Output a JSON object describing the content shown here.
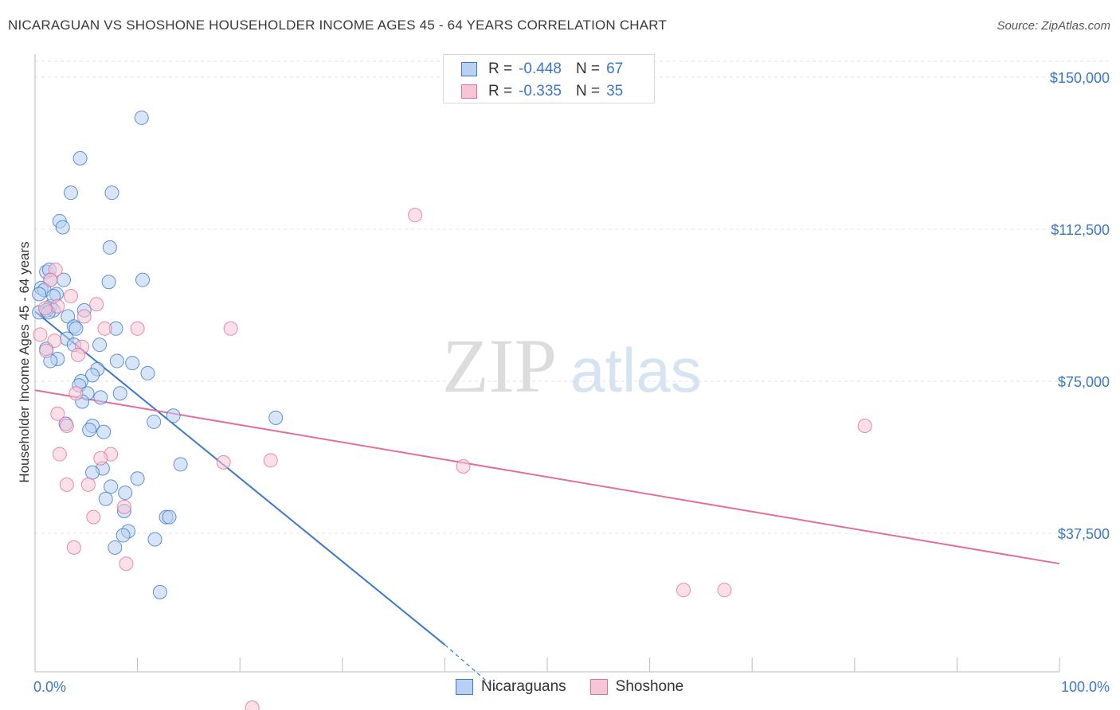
{
  "title": "NICARAGUAN VS SHOSHONE HOUSEHOLDER INCOME AGES 45 - 64 YEARS CORRELATION CHART",
  "source": "Source: ZipAtlas.com",
  "watermark": {
    "zip": "ZIP",
    "atlas": "atlas"
  },
  "colors": {
    "blue": "#3b78c9",
    "blue_fill": "#b8d0f2",
    "pink": "#e07097",
    "pink_fill": "#f7c6d6"
  },
  "legend": {
    "rows": [
      {
        "r_label": "R =",
        "r_value": "-0.448",
        "n_label": "N =",
        "n_value": "67"
      },
      {
        "r_label": "R =",
        "r_value": "-0.335",
        "n_label": "N =",
        "n_value": "35"
      }
    ]
  },
  "bottom_legend": [
    "Nicaraguans",
    "Shoshone"
  ],
  "chart_data": {
    "type": "scatter",
    "title": "NICARAGUAN VS SHOSHONE HOUSEHOLDER INCOME AGES 45 - 64 YEARS CORRELATION CHART",
    "xlabel": "",
    "ylabel": "Householder Income Ages 45 - 64 years",
    "xlim": [
      0,
      100
    ],
    "ylim": [
      0,
      155000
    ],
    "x_tick_labels": [
      "0.0%",
      "100.0%"
    ],
    "y_ticks": [
      37500,
      75000,
      112500,
      150000
    ],
    "y_tick_labels": [
      "$37,500",
      "$75,000",
      "$112,500",
      "$150,000"
    ],
    "series": [
      {
        "name": "Nicaraguans",
        "points": [
          [
            10.4,
            140000
          ],
          [
            4.4,
            130000
          ],
          [
            3.5,
            121500
          ],
          [
            7.5,
            121500
          ],
          [
            2.4,
            114500
          ],
          [
            2.7,
            113000
          ],
          [
            7.3,
            108000
          ],
          [
            1.1,
            102000
          ],
          [
            1.4,
            102500
          ],
          [
            1.5,
            100000
          ],
          [
            7.2,
            99500
          ],
          [
            10.5,
            100000
          ],
          [
            0.6,
            98000
          ],
          [
            0.9,
            97500
          ],
          [
            0.4,
            96500
          ],
          [
            2.1,
            96500
          ],
          [
            1.5,
            93500
          ],
          [
            1.8,
            92500
          ],
          [
            0.4,
            92000
          ],
          [
            1.1,
            92500
          ],
          [
            4.8,
            92500
          ],
          [
            3.2,
            91000
          ],
          [
            1.3,
            92000
          ],
          [
            3.8,
            88500
          ],
          [
            4.0,
            88000
          ],
          [
            7.9,
            88000
          ],
          [
            3.1,
            85500
          ],
          [
            3.8,
            84000
          ],
          [
            6.3,
            84000
          ],
          [
            1.1,
            83000
          ],
          [
            2.2,
            80500
          ],
          [
            1.5,
            80000
          ],
          [
            8.0,
            80000
          ],
          [
            9.5,
            79500
          ],
          [
            6.1,
            78000
          ],
          [
            11.0,
            77000
          ],
          [
            5.6,
            76500
          ],
          [
            4.5,
            75000
          ],
          [
            4.3,
            74000
          ],
          [
            8.3,
            72000
          ],
          [
            5.1,
            72000
          ],
          [
            6.4,
            71000
          ],
          [
            4.6,
            70000
          ],
          [
            13.5,
            66500
          ],
          [
            23.5,
            66000
          ],
          [
            11.6,
            65000
          ],
          [
            3.0,
            64500
          ],
          [
            5.6,
            64000
          ],
          [
            5.3,
            63000
          ],
          [
            6.7,
            62500
          ],
          [
            14.2,
            54500
          ],
          [
            6.6,
            53500
          ],
          [
            5.6,
            52500
          ],
          [
            10.0,
            51000
          ],
          [
            7.4,
            49000
          ],
          [
            8.8,
            47500
          ],
          [
            6.9,
            46000
          ],
          [
            8.7,
            43000
          ],
          [
            12.8,
            41500
          ],
          [
            13.1,
            41500
          ],
          [
            9.1,
            38000
          ],
          [
            8.6,
            37000
          ],
          [
            11.7,
            36000
          ],
          [
            7.8,
            34000
          ],
          [
            12.2,
            23000
          ],
          [
            2.8,
            100000
          ],
          [
            1.8,
            96000
          ]
        ]
      },
      {
        "name": "Shoshone",
        "points": [
          [
            37.1,
            116000
          ],
          [
            2.0,
            102500
          ],
          [
            1.5,
            100000
          ],
          [
            3.5,
            96000
          ],
          [
            6.0,
            94000
          ],
          [
            2.2,
            93500
          ],
          [
            1.0,
            93000
          ],
          [
            4.8,
            91000
          ],
          [
            6.8,
            88000
          ],
          [
            10.0,
            88000
          ],
          [
            19.1,
            88000
          ],
          [
            0.5,
            86500
          ],
          [
            1.9,
            85000
          ],
          [
            4.6,
            83500
          ],
          [
            1.1,
            82500
          ],
          [
            4.2,
            81500
          ],
          [
            4.0,
            72000
          ],
          [
            2.2,
            67000
          ],
          [
            3.1,
            64000
          ],
          [
            81.0,
            64000
          ],
          [
            2.4,
            57000
          ],
          [
            7.4,
            57000
          ],
          [
            6.4,
            56000
          ],
          [
            18.4,
            55000
          ],
          [
            23.0,
            55500
          ],
          [
            41.8,
            54000
          ],
          [
            3.1,
            49500
          ],
          [
            5.2,
            49500
          ],
          [
            8.7,
            44000
          ],
          [
            5.7,
            41500
          ],
          [
            3.8,
            34000
          ],
          [
            8.9,
            30000
          ],
          [
            63.3,
            23500
          ],
          [
            67.3,
            23500
          ],
          [
            21.2,
            -5500
          ]
        ]
      }
    ],
    "trendlines": [
      {
        "series": "Nicaraguans",
        "x": [
          0,
          40
        ],
        "y": [
          92200,
          10000
        ],
        "dashed_to": [
          45,
          -1000
        ]
      },
      {
        "series": "Shoshone",
        "x": [
          0,
          100
        ],
        "y": [
          72800,
          30000
        ]
      }
    ]
  }
}
